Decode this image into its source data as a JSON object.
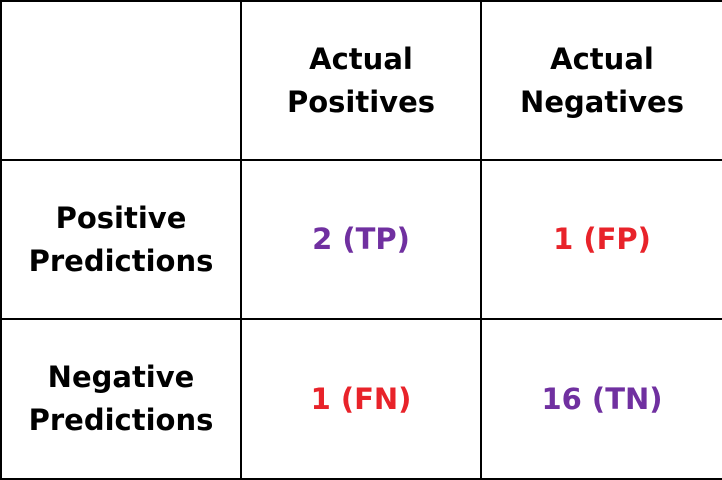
{
  "chart_data": {
    "type": "table",
    "corner": "",
    "columns": [
      {
        "line1": "Actual",
        "line2": "Positives"
      },
      {
        "line1": "Actual",
        "line2": "Negatives"
      }
    ],
    "rows": [
      {
        "line1": "Positive",
        "line2": "Predictions",
        "cells": [
          {
            "text": "2 (TP)",
            "value": 2,
            "code": "TP",
            "color": "#7030A0"
          },
          {
            "text": "1 (FP)",
            "value": 1,
            "code": "FP",
            "color": "#E8232A"
          }
        ]
      },
      {
        "line1": "Negative",
        "line2": "Predictions",
        "cells": [
          {
            "text": "1 (FN)",
            "value": 1,
            "code": "FN",
            "color": "#E8232A"
          },
          {
            "text": "16 (TN)",
            "value": 16,
            "code": "TN",
            "color": "#7030A0"
          }
        ]
      }
    ]
  }
}
